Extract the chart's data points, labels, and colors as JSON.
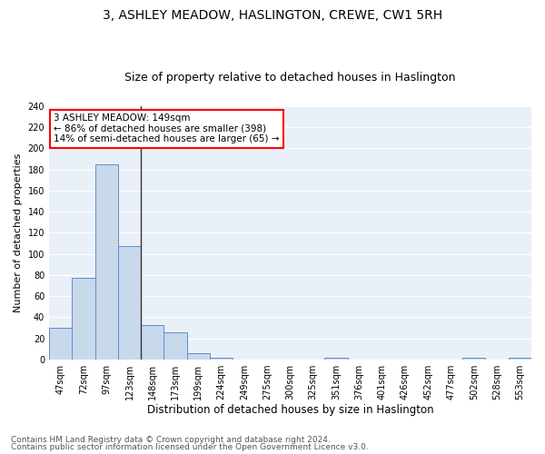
{
  "title": "3, ASHLEY MEADOW, HASLINGTON, CREWE, CW1 5RH",
  "subtitle": "Size of property relative to detached houses in Haslington",
  "xlabel": "Distribution of detached houses by size in Haslington",
  "ylabel": "Number of detached properties",
  "categories": [
    "47sqm",
    "72sqm",
    "97sqm",
    "123sqm",
    "148sqm",
    "173sqm",
    "199sqm",
    "224sqm",
    "249sqm",
    "275sqm",
    "300sqm",
    "325sqm",
    "351sqm",
    "376sqm",
    "401sqm",
    "426sqm",
    "452sqm",
    "477sqm",
    "502sqm",
    "528sqm",
    "553sqm"
  ],
  "values": [
    30,
    77,
    185,
    107,
    33,
    26,
    6,
    2,
    0,
    0,
    0,
    0,
    2,
    0,
    0,
    0,
    0,
    0,
    2,
    0,
    2
  ],
  "bar_color": "#c9d9ec",
  "bar_edge_color": "#5b8fc9",
  "vline_index": 4,
  "vline_color": "#333333",
  "annotation_text": "3 ASHLEY MEADOW: 149sqm\n← 86% of detached houses are smaller (398)\n14% of semi-detached houses are larger (65) →",
  "annotation_box_color": "white",
  "annotation_box_edge": "red",
  "ylim": [
    0,
    240
  ],
  "yticks": [
    0,
    20,
    40,
    60,
    80,
    100,
    120,
    140,
    160,
    180,
    200,
    220,
    240
  ],
  "bg_color": "#eaf0f8",
  "grid_color": "#ffffff",
  "footer1": "Contains HM Land Registry data © Crown copyright and database right 2024.",
  "footer2": "Contains public sector information licensed under the Open Government Licence v3.0.",
  "title_fontsize": 10,
  "subtitle_fontsize": 9,
  "xlabel_fontsize": 8.5,
  "ylabel_fontsize": 8,
  "tick_fontsize": 7,
  "footer_fontsize": 6.5,
  "annotation_fontsize": 7.5
}
